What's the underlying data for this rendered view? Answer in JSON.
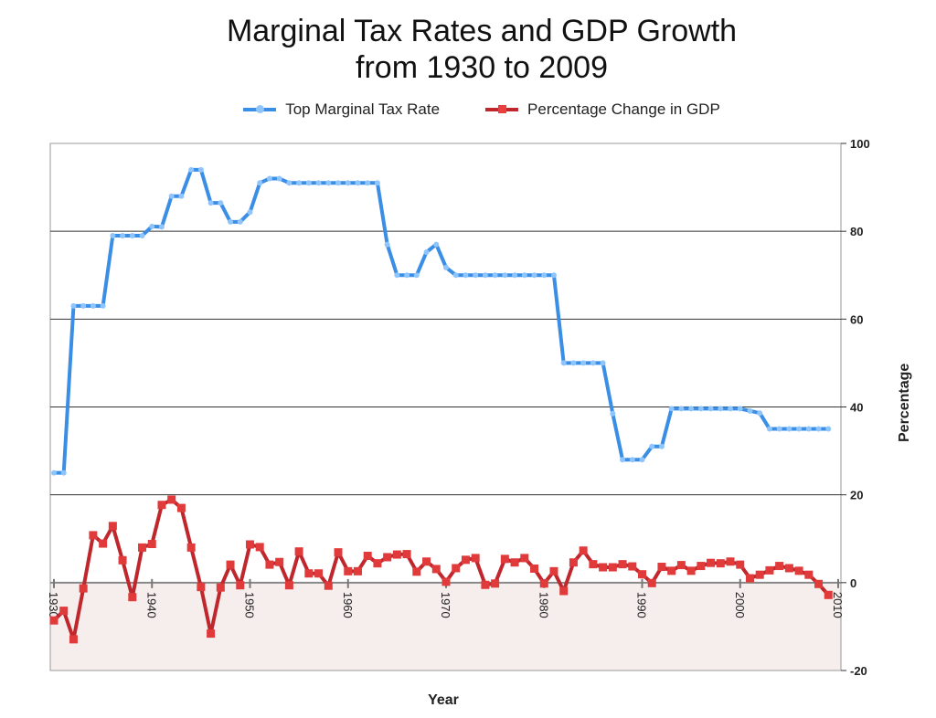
{
  "chart_data": {
    "type": "line",
    "title_line1": "Marginal Tax Rates and GDP Growth",
    "title_line2": "from 1930 to 2009",
    "xlabel": "Year",
    "ylabel": "Percentage",
    "ylim": [
      -20,
      100
    ],
    "yticks": [
      -20,
      0,
      20,
      40,
      60,
      80,
      100
    ],
    "xlim": [
      1930,
      2010
    ],
    "xticks": [
      1930,
      1940,
      1950,
      1960,
      1970,
      1980,
      1990,
      2000,
      2010
    ],
    "grid": true,
    "legend_position": "top",
    "x": [
      1930,
      1931,
      1932,
      1933,
      1934,
      1935,
      1936,
      1937,
      1938,
      1939,
      1940,
      1941,
      1942,
      1943,
      1944,
      1945,
      1946,
      1947,
      1948,
      1949,
      1950,
      1951,
      1952,
      1953,
      1954,
      1955,
      1956,
      1957,
      1958,
      1959,
      1960,
      1961,
      1962,
      1963,
      1964,
      1965,
      1966,
      1967,
      1968,
      1969,
      1970,
      1971,
      1972,
      1973,
      1974,
      1975,
      1976,
      1977,
      1978,
      1979,
      1980,
      1981,
      1982,
      1983,
      1984,
      1985,
      1986,
      1987,
      1988,
      1989,
      1990,
      1991,
      1992,
      1993,
      1994,
      1995,
      1996,
      1997,
      1998,
      1999,
      2000,
      2001,
      2002,
      2003,
      2004,
      2005,
      2006,
      2007,
      2008,
      2009
    ],
    "series": [
      {
        "name": "Top Marginal Tax Rate",
        "color": "#3a8ee6",
        "values": [
          25,
          25,
          63,
          63,
          63,
          63,
          79,
          79,
          79,
          79,
          81.1,
          81,
          88,
          88,
          94,
          94,
          86.45,
          86.45,
          82.13,
          82.13,
          84.36,
          91,
          92,
          92,
          91,
          91,
          91,
          91,
          91,
          91,
          91,
          91,
          91,
          91,
          77,
          70,
          70,
          70,
          75.25,
          77,
          71.75,
          70,
          70,
          70,
          70,
          70,
          70,
          70,
          70,
          70,
          70,
          70,
          50,
          50,
          50,
          50,
          50,
          38.5,
          28,
          28,
          28,
          31,
          31,
          39.6,
          39.6,
          39.6,
          39.6,
          39.6,
          39.6,
          39.6,
          39.6,
          39.1,
          38.6,
          35,
          35,
          35,
          35,
          35,
          35,
          35
        ]
      },
      {
        "name": "Percentage Change in GDP",
        "color": "#c0272d",
        "values": [
          -8.6,
          -6.4,
          -12.9,
          -1.3,
          10.8,
          8.9,
          12.9,
          5.1,
          -3.3,
          8.0,
          8.8,
          17.7,
          18.9,
          17.0,
          8.0,
          -1.0,
          -11.6,
          -1.1,
          4.1,
          -0.6,
          8.7,
          8.1,
          4.1,
          4.7,
          -0.6,
          7.1,
          2.1,
          2.1,
          -0.7,
          6.9,
          2.6,
          2.6,
          6.1,
          4.4,
          5.8,
          6.4,
          6.5,
          2.5,
          4.8,
          3.1,
          0.2,
          3.3,
          5.2,
          5.6,
          -0.5,
          -0.2,
          5.4,
          4.6,
          5.6,
          3.2,
          -0.2,
          2.6,
          -1.9,
          4.6,
          7.3,
          4.2,
          3.5,
          3.5,
          4.2,
          3.7,
          1.9,
          -0.1,
          3.6,
          2.7,
          4.0,
          2.7,
          3.8,
          4.5,
          4.4,
          4.8,
          4.1,
          1.0,
          1.8,
          2.8,
          3.8,
          3.3,
          2.7,
          1.8,
          -0.3,
          -2.8
        ]
      }
    ]
  }
}
